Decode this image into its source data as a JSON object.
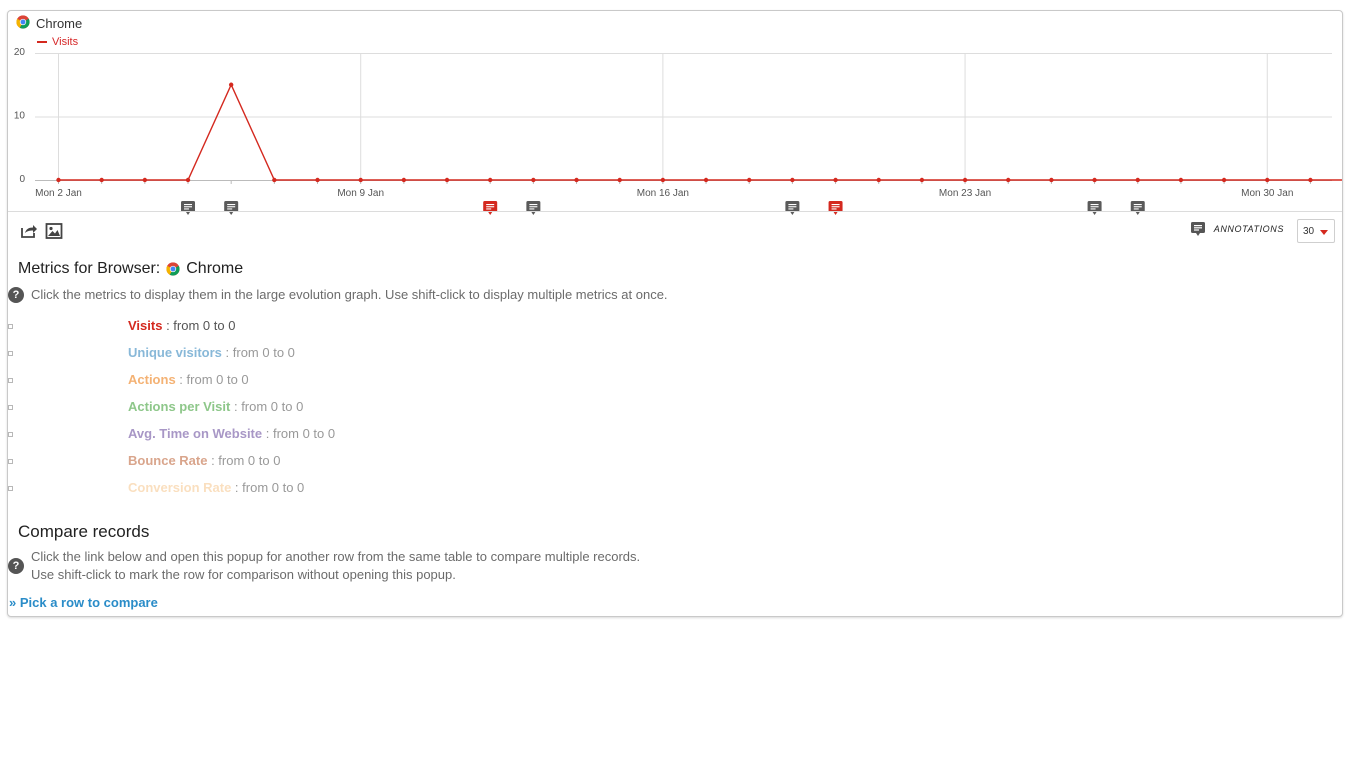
{
  "graph": {
    "title": "Chrome",
    "legend_label": "Visits",
    "line_color": "#d4291f"
  },
  "chart_data": {
    "type": "line",
    "series": [
      {
        "name": "Visits",
        "values": [
          0,
          0,
          0,
          0,
          15,
          0,
          0,
          0,
          0,
          0,
          0,
          0,
          0,
          0,
          0,
          0,
          0,
          0,
          0,
          0,
          0,
          0,
          0,
          0,
          0,
          0,
          0,
          0,
          0,
          0,
          0
        ]
      }
    ],
    "x": [
      "2 Jan",
      "3 Jan",
      "4 Jan",
      "5 Jan",
      "6 Jan",
      "7 Jan",
      "8 Jan",
      "9 Jan",
      "10 Jan",
      "11 Jan",
      "12 Jan",
      "13 Jan",
      "14 Jan",
      "15 Jan",
      "16 Jan",
      "17 Jan",
      "18 Jan",
      "19 Jan",
      "20 Jan",
      "21 Jan",
      "22 Jan",
      "23 Jan",
      "24 Jan",
      "25 Jan",
      "26 Jan",
      "27 Jan",
      "28 Jan",
      "29 Jan",
      "30 Jan",
      "31 Jan",
      "1 Feb"
    ],
    "x_tick_labels": [
      "Mon 2 Jan",
      "Mon 9 Jan",
      "Mon 16 Jan",
      "Mon 23 Jan",
      "Mon 30 Jan"
    ],
    "y_tick_labels": [
      "20",
      "10",
      "0"
    ],
    "ylim": [
      0,
      20
    ],
    "grid": true,
    "annotation_markers": [
      {
        "day_index": 3,
        "highlighted": false
      },
      {
        "day_index": 4,
        "highlighted": false
      },
      {
        "day_index": 10,
        "highlighted": true
      },
      {
        "day_index": 11,
        "highlighted": false
      },
      {
        "day_index": 17,
        "highlighted": false
      },
      {
        "day_index": 18,
        "highlighted": true
      },
      {
        "day_index": 24,
        "highlighted": false
      },
      {
        "day_index": 25,
        "highlighted": false
      }
    ]
  },
  "toolbar": {
    "export_icon": "share-export-icon",
    "image_icon": "image-icon",
    "annotations_icon": "annotation-icon",
    "annotations_label": "ANNOTATIONS",
    "period_value": "30"
  },
  "metrics": {
    "title_prefix": "Metrics for Browser:",
    "title_name": "Chrome",
    "help_text": "Click the metrics to display them in the large evolution graph. Use shift-click to display multiple metrics at once.",
    "items": [
      {
        "name": "Visits",
        "range": ": from 0 to 0",
        "color": "#d4291f",
        "range_color": "#555555"
      },
      {
        "name": "Unique visitors",
        "range": ": from 0 to 0",
        "color": "#88b8d8",
        "range_color": "#999999"
      },
      {
        "name": "Actions",
        "range": ": from 0 to 0",
        "color": "#f4b274",
        "range_color": "#999999"
      },
      {
        "name": "Actions per Visit",
        "range": ": from 0 to 0",
        "color": "#8ec78a",
        "range_color": "#999999"
      },
      {
        "name": "Avg. Time on Website",
        "range": ": from 0 to 0",
        "color": "#a897c6",
        "range_color": "#999999"
      },
      {
        "name": "Bounce Rate",
        "range": ": from 0 to 0",
        "color": "#d9a58c",
        "range_color": "#999999"
      },
      {
        "name": "Conversion Rate",
        "range": ": from 0 to 0",
        "color": "#fadfbf",
        "range_color": "#999999"
      }
    ]
  },
  "compare": {
    "title": "Compare records",
    "help_line1": "Click the link below and open this popup for another row from the same table to compare multiple records.",
    "help_line2": "Use shift-click to mark the row for comparison without opening this popup.",
    "link": "» Pick a row to compare"
  }
}
